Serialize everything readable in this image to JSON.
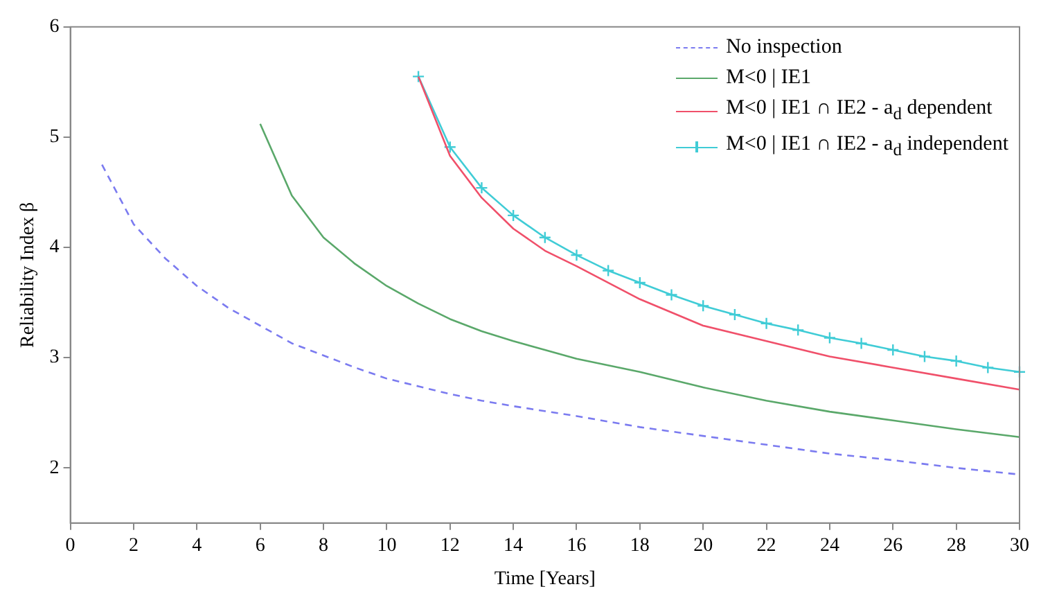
{
  "chart_data": {
    "type": "line",
    "xlabel": "Time [Years]",
    "ylabel": "Reliability Index β",
    "xlim": [
      0,
      30
    ],
    "xticks": [
      0,
      2,
      4,
      6,
      8,
      10,
      12,
      14,
      16,
      18,
      20,
      22,
      24,
      26,
      28,
      30
    ],
    "ylim": [
      1.5,
      6
    ],
    "yticks": [
      2,
      3,
      4,
      5,
      6
    ],
    "grid": false,
    "legend": "top right",
    "series": [
      {
        "name": "No inspection",
        "color": "#7b7bf0",
        "line_style": "dashed",
        "marker": "none",
        "x": [
          1,
          2,
          3,
          4,
          5,
          6,
          7,
          8,
          9,
          10,
          11,
          12,
          13,
          14,
          16,
          18,
          20,
          22,
          24,
          26,
          28,
          30
        ],
        "values": [
          4.75,
          4.21,
          3.9,
          3.65,
          3.45,
          3.29,
          3.13,
          3.02,
          2.91,
          2.81,
          2.74,
          2.67,
          2.61,
          2.56,
          2.47,
          2.37,
          2.29,
          2.21,
          2.13,
          2.07,
          2.0,
          1.94
        ]
      },
      {
        "name": "M<0 | IE1",
        "color": "#5aa86a",
        "line_style": "solid",
        "marker": "none",
        "x": [
          6,
          7,
          8,
          9,
          10,
          11,
          12,
          13,
          14,
          15,
          16,
          18,
          20,
          22,
          24,
          26,
          28,
          30
        ],
        "values": [
          5.12,
          4.47,
          4.09,
          3.85,
          3.65,
          3.49,
          3.35,
          3.24,
          3.15,
          3.07,
          2.99,
          2.87,
          2.73,
          2.61,
          2.51,
          2.43,
          2.35,
          2.28
        ]
      },
      {
        "name": "M<0 | IE1 ∩ IE2 - a$_{d}$ dependent",
        "color": "#f0506a",
        "line_style": "solid",
        "marker": "none",
        "x": [
          11,
          12,
          13,
          14,
          15,
          16,
          18,
          20,
          22,
          24,
          26,
          28,
          30
        ],
        "values": [
          5.55,
          4.83,
          4.45,
          4.17,
          3.97,
          3.83,
          3.53,
          3.29,
          3.15,
          3.01,
          2.91,
          2.81,
          2.71
        ]
      },
      {
        "name": "M<0 | IE1 ∩ IE2 - a$_{d}$ independent",
        "color": "#40ccd6",
        "line_style": "solid",
        "marker": "cross",
        "x": [
          11,
          12,
          13,
          14,
          15,
          16,
          17,
          18,
          19,
          20,
          21,
          22,
          23,
          24,
          25,
          26,
          27,
          28,
          29,
          30
        ],
        "values": [
          5.55,
          4.91,
          4.54,
          4.29,
          4.09,
          3.93,
          3.79,
          3.68,
          3.57,
          3.47,
          3.39,
          3.31,
          3.25,
          3.18,
          3.13,
          3.07,
          3.01,
          2.97,
          2.91,
          2.87
        ]
      }
    ]
  }
}
